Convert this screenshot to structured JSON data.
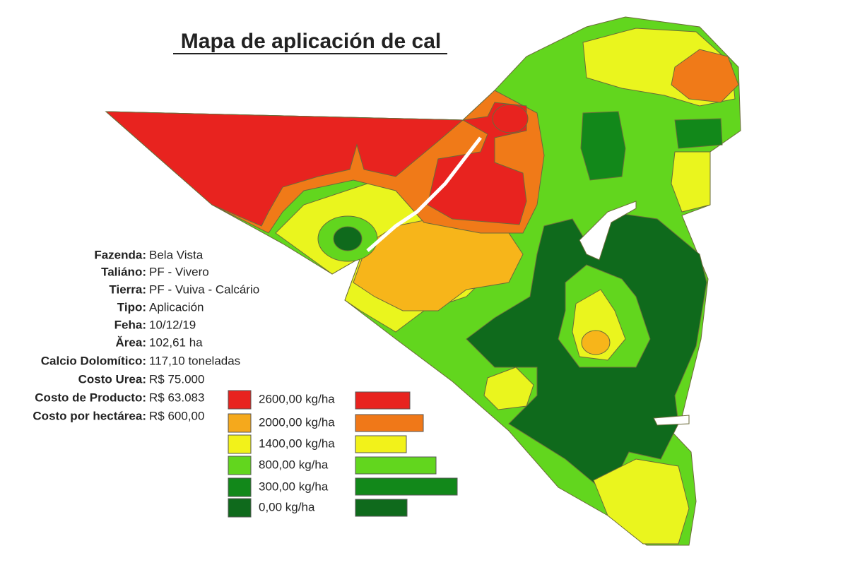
{
  "title": "Mapa de aplicación de cal",
  "info": [
    {
      "label": "Fazenda:",
      "value": "Bela Vista"
    },
    {
      "label": "Taliáno:",
      "value": "PF - Vivero"
    },
    {
      "label": "Tierra:",
      "value": "PF - Vuiva - Calcário"
    },
    {
      "label": "Tipo:",
      "value": "Aplicación"
    },
    {
      "label": "Feha:",
      "value": "10/12/19"
    },
    {
      "label": "Ărea:",
      "value": "102,61 ha"
    },
    {
      "label": "Calcio Dolomítico:",
      "value": "117,10 toneladas"
    },
    {
      "label": "Costo Urea:",
      "value": "R$ 75.000"
    },
    {
      "label": "Costo de Producto:",
      "value": "R$ 63.083"
    },
    {
      "label": "Costo por hectárea:",
      "value": "R$ 600,00"
    }
  ],
  "legend": [
    {
      "label": "2600,00 kg/ha",
      "color": "#e8231f"
    },
    {
      "label": "2000,00 kg/ha",
      "color": "#f5a91c"
    },
    {
      "label": "1400,00 kg/ha",
      "color": "#f2f21a"
    },
    {
      "label": "800,00 kg/ha",
      "color": "#62d61e"
    },
    {
      "label": "300,00 kg/ha",
      "color": "#12881a"
    },
    {
      "label": "0,00 kg/ha",
      "color": "#0f6a1c"
    }
  ]
}
